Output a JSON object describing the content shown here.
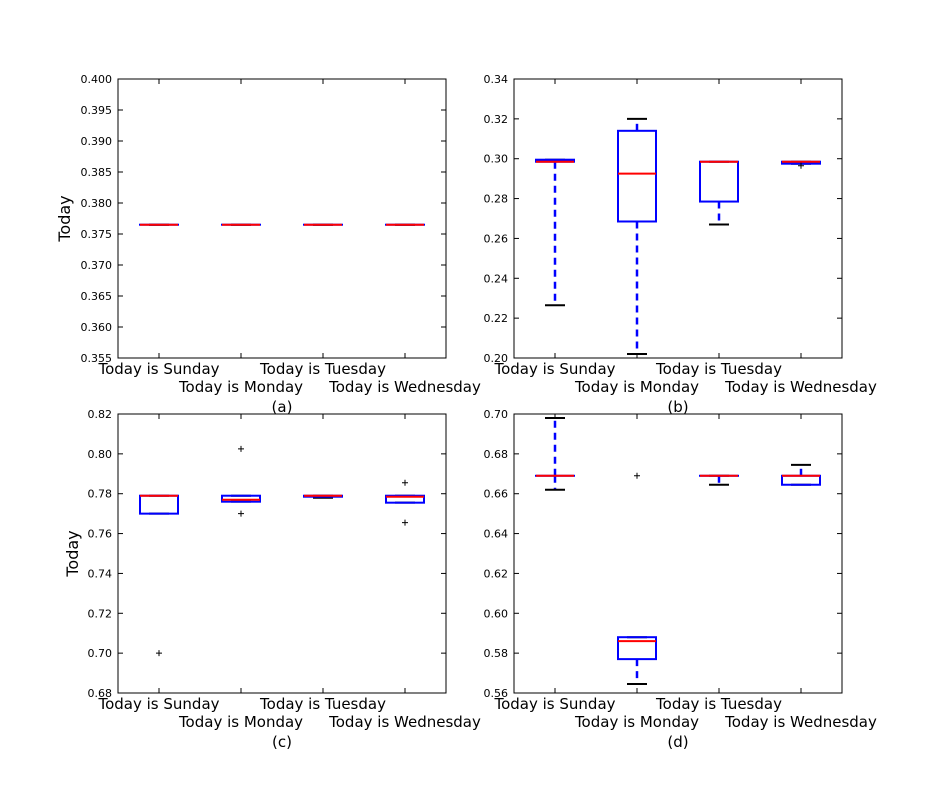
{
  "chart_data": [
    {
      "type": "boxplot",
      "panel_label": "(a)",
      "ylabel": "Today",
      "categories": [
        "Today is Sunday",
        "Today is Monday",
        "Today is Tuesday",
        "Today is Wednesday"
      ],
      "ylim": [
        0.355,
        0.4
      ],
      "yticks": [
        "0.355",
        "0.360",
        "0.365",
        "0.370",
        "0.375",
        "0.380",
        "0.385",
        "0.390",
        "0.395",
        "0.400"
      ],
      "boxes": [
        {
          "whislo": 0.3765,
          "q1": 0.3765,
          "med": 0.3765,
          "q3": 0.3765,
          "whishi": 0.3765,
          "fliers": []
        },
        {
          "whislo": 0.3765,
          "q1": 0.3765,
          "med": 0.3765,
          "q3": 0.3765,
          "whishi": 0.3765,
          "fliers": []
        },
        {
          "whislo": 0.3765,
          "q1": 0.3765,
          "med": 0.3765,
          "q3": 0.3765,
          "whishi": 0.3765,
          "fliers": []
        },
        {
          "whislo": 0.3765,
          "q1": 0.3765,
          "med": 0.3765,
          "q3": 0.3765,
          "whishi": 0.3765,
          "fliers": []
        }
      ]
    },
    {
      "type": "boxplot",
      "panel_label": "(b)",
      "ylabel": "",
      "categories": [
        "Today is Sunday",
        "Today is Monday",
        "Today is Tuesday",
        "Today is Wednesday"
      ],
      "ylim": [
        0.2,
        0.34
      ],
      "yticks": [
        "0.20",
        "0.22",
        "0.24",
        "0.26",
        "0.28",
        "0.30",
        "0.32",
        "0.34"
      ],
      "boxes": [
        {
          "whislo": 0.2265,
          "q1": 0.2985,
          "med": 0.2985,
          "q3": 0.2995,
          "whishi": 0.2995,
          "fliers": []
        },
        {
          "whislo": 0.202,
          "q1": 0.2685,
          "med": 0.2925,
          "q3": 0.314,
          "whishi": 0.32,
          "fliers": []
        },
        {
          "whislo": 0.267,
          "q1": 0.2785,
          "med": 0.2985,
          "q3": 0.2985,
          "whishi": 0.2985,
          "fliers": []
        },
        {
          "whislo": 0.2975,
          "q1": 0.2975,
          "med": 0.2985,
          "q3": 0.2985,
          "whishi": 0.2985,
          "fliers": [
            0.2965
          ]
        }
      ]
    },
    {
      "type": "boxplot",
      "panel_label": "(c)",
      "ylabel": "Today",
      "categories": [
        "Today is Sunday",
        "Today is Monday",
        "Today is Tuesday",
        "Today is Wednesday"
      ],
      "ylim": [
        0.68,
        0.82
      ],
      "yticks": [
        "0.68",
        "0.70",
        "0.72",
        "0.74",
        "0.76",
        "0.78",
        "0.80",
        "0.82"
      ],
      "boxes": [
        {
          "whislo": 0.77,
          "q1": 0.77,
          "med": 0.779,
          "q3": 0.779,
          "whishi": 0.779,
          "fliers": [
            0.7
          ]
        },
        {
          "whislo": 0.776,
          "q1": 0.776,
          "med": 0.777,
          "q3": 0.779,
          "whishi": 0.779,
          "fliers": [
            0.8025,
            0.77
          ]
        },
        {
          "whislo": 0.778,
          "q1": 0.7785,
          "med": 0.779,
          "q3": 0.779,
          "whishi": 0.779,
          "fliers": []
        },
        {
          "whislo": 0.7755,
          "q1": 0.7755,
          "med": 0.7785,
          "q3": 0.779,
          "whishi": 0.779,
          "fliers": [
            0.7855,
            0.7655
          ]
        }
      ]
    },
    {
      "type": "boxplot",
      "panel_label": "(d)",
      "ylabel": "",
      "categories": [
        "Today is Sunday",
        "Today is Monday",
        "Today is Tuesday",
        "Today is Wednesday"
      ],
      "ylim": [
        0.56,
        0.7
      ],
      "yticks": [
        "0.56",
        "0.58",
        "0.60",
        "0.62",
        "0.64",
        "0.66",
        "0.68",
        "0.70"
      ],
      "boxes": [
        {
          "whislo": 0.662,
          "q1": 0.669,
          "med": 0.669,
          "q3": 0.669,
          "whishi": 0.698,
          "fliers": []
        },
        {
          "whislo": 0.5645,
          "q1": 0.577,
          "med": 0.586,
          "q3": 0.588,
          "whishi": 0.588,
          "fliers": [
            0.669
          ]
        },
        {
          "whislo": 0.6645,
          "q1": 0.669,
          "med": 0.669,
          "q3": 0.669,
          "whishi": 0.669,
          "fliers": []
        },
        {
          "whislo": 0.6645,
          "q1": 0.6645,
          "med": 0.669,
          "q3": 0.669,
          "whishi": 0.6745,
          "fliers": []
        }
      ]
    }
  ]
}
